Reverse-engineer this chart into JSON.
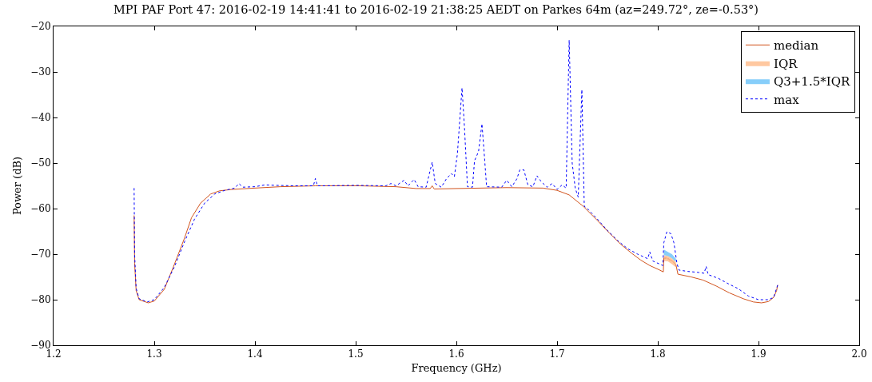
{
  "chart_data": {
    "type": "line",
    "title": "MPI PAF Port 47: 2016-02-19 14:41:41 to 2016-02-19 21:38:25 AEDT on Parkes 64m (az=249.72°, ze=-0.53°)",
    "xlabel": "Frequency (GHz)",
    "ylabel": "Power (dB)",
    "xlim": [
      1.2,
      2.0
    ],
    "xticks": [
      1.2,
      1.3,
      1.4,
      1.5,
      1.6,
      1.7,
      1.8,
      1.9,
      {
        "value": 2,
        "label": "2.0"
      }
    ],
    "ylim": [
      -90,
      -20
    ],
    "yticks": [
      {
        "value": -90,
        "label": "−90"
      },
      {
        "value": -80,
        "label": "−80"
      },
      {
        "value": -70,
        "label": "−70"
      },
      {
        "value": -60,
        "label": "−60"
      },
      {
        "value": -50,
        "label": "−50"
      },
      {
        "value": -40,
        "label": "−40"
      },
      {
        "value": -30,
        "label": "−30"
      },
      {
        "value": -20,
        "label": "−20"
      }
    ],
    "grid": false,
    "legend": "top right",
    "marker": "none",
    "series": [
      {
        "name": "median",
        "color": "#d2541e",
        "line_style": "solid",
        "x": [
          1.28,
          1.2805,
          1.282,
          1.285,
          1.294,
          1.3,
          1.31,
          1.319,
          1.33,
          1.337,
          1.346,
          1.356,
          1.365,
          1.377,
          1.4,
          1.425,
          1.46,
          1.504,
          1.54,
          1.56,
          1.574,
          1.576,
          1.578,
          1.6,
          1.65,
          1.686,
          1.7,
          1.712,
          1.726,
          1.74,
          1.752,
          1.763,
          1.774,
          1.783,
          1.792,
          1.8,
          1.8055,
          1.806,
          1.81,
          1.814,
          1.818,
          1.82,
          1.833,
          1.845,
          1.858,
          1.871,
          1.885,
          1.895,
          1.903,
          1.91,
          1.915,
          1.918,
          1.919
        ],
        "values": [
          -61.5,
          -72,
          -78,
          -80,
          -80.7,
          -80.3,
          -77.7,
          -72.8,
          -66.5,
          -62,
          -58.8,
          -56.8,
          -56.1,
          -55.8,
          -55.5,
          -55.2,
          -55,
          -55,
          -55.2,
          -55.6,
          -55.6,
          -55,
          -55.7,
          -55.6,
          -55.4,
          -55.5,
          -56,
          -57,
          -59.5,
          -62.6,
          -65.4,
          -67.8,
          -69.8,
          -71.3,
          -72.5,
          -73.3,
          -73.9,
          -70.8,
          -71,
          -71.5,
          -72.3,
          -74.4,
          -75,
          -75.7,
          -77,
          -78.5,
          -79.8,
          -80.5,
          -80.7,
          -80.4,
          -79.5,
          -78,
          -76.8
        ]
      },
      {
        "name": "IQR",
        "color": "#ffc8a0",
        "x": [
          1.806,
          1.81,
          1.814,
          1.818
        ],
        "values": [
          -70.8,
          -71,
          -71.5,
          -72.3
        ],
        "lower": [
          -71.5,
          -71.6,
          -72.2,
          -72.9
        ],
        "upper": [
          -70.2,
          -70.4,
          -70.9,
          -71.7
        ]
      },
      {
        "name": "Q3+1.5*IQR",
        "color": "#87cefa",
        "x": [
          1.806,
          1.81,
          1.814,
          1.818
        ],
        "values": [
          -69.6,
          -70,
          -70.5,
          -71.3
        ],
        "lower": [
          -70.2,
          -70.4,
          -70.9,
          -71.7
        ],
        "upper": [
          -69,
          -69.5,
          -70,
          -71
        ]
      },
      {
        "name": "max",
        "color": "#0000ff",
        "line_style": "dotted",
        "x": [
          1.28,
          1.2805,
          1.282,
          1.285,
          1.293,
          1.3,
          1.31,
          1.32,
          1.33,
          1.34,
          1.35,
          1.36,
          1.37,
          1.38,
          1.384,
          1.388,
          1.4,
          1.41,
          1.42,
          1.44,
          1.458,
          1.46,
          1.462,
          1.5,
          1.53,
          1.535,
          1.54,
          1.548,
          1.552,
          1.558,
          1.562,
          1.57,
          1.573,
          1.576,
          1.579,
          1.585,
          1.59,
          1.595,
          1.598,
          1.601,
          1.6056,
          1.608,
          1.611,
          1.616,
          1.618,
          1.62,
          1.622,
          1.6254,
          1.628,
          1.63,
          1.645,
          1.65,
          1.655,
          1.66,
          1.663,
          1.667,
          1.671,
          1.676,
          1.68,
          1.684,
          1.69,
          1.695,
          1.7,
          1.705,
          1.709,
          1.712,
          1.715,
          1.718,
          1.721,
          1.7246,
          1.727,
          1.73,
          1.74,
          1.75,
          1.76,
          1.77,
          1.78,
          1.79,
          1.792,
          1.795,
          1.8,
          1.805,
          1.806,
          1.809,
          1.813,
          1.816,
          1.819,
          1.821,
          1.83,
          1.84,
          1.846,
          1.848,
          1.85,
          1.86,
          1.87,
          1.88,
          1.89,
          1.9,
          1.91,
          1.915,
          1.919
        ],
        "values": [
          -55.5,
          -70,
          -77.5,
          -79.8,
          -80.5,
          -80,
          -77.3,
          -72.8,
          -67.3,
          -62.3,
          -58.8,
          -56.8,
          -56,
          -55.5,
          -54.5,
          -55.3,
          -55.2,
          -54.8,
          -54.9,
          -55,
          -55,
          -53.4,
          -55,
          -54.9,
          -55,
          -54.5,
          -55,
          -53.8,
          -55,
          -53.6,
          -55.2,
          -55.3,
          -52.5,
          -49.8,
          -54.5,
          -55.3,
          -53.5,
          -52.3,
          -53,
          -48,
          -33.5,
          -42,
          -55.2,
          -55.3,
          -49.5,
          -48.5,
          -47.5,
          -41.4,
          -49,
          -55.2,
          -55.3,
          -53.8,
          -55.2,
          -53.5,
          -51.5,
          -51.5,
          -54.8,
          -55.2,
          -52.8,
          -54,
          -55.3,
          -54.5,
          -55.8,
          -54.8,
          -55.5,
          -23,
          -50,
          -55.5,
          -57.5,
          -33.9,
          -59.5,
          -60,
          -62.3,
          -64.8,
          -67,
          -68.8,
          -70,
          -71,
          -69.5,
          -71.5,
          -72,
          -72.5,
          -67.5,
          -65.1,
          -65.5,
          -67.5,
          -72,
          -73.5,
          -73.8,
          -74,
          -74.2,
          -72.7,
          -74.5,
          -75.3,
          -76.5,
          -77.6,
          -79.2,
          -80,
          -80,
          -79.5,
          -76.8
        ]
      }
    ]
  }
}
